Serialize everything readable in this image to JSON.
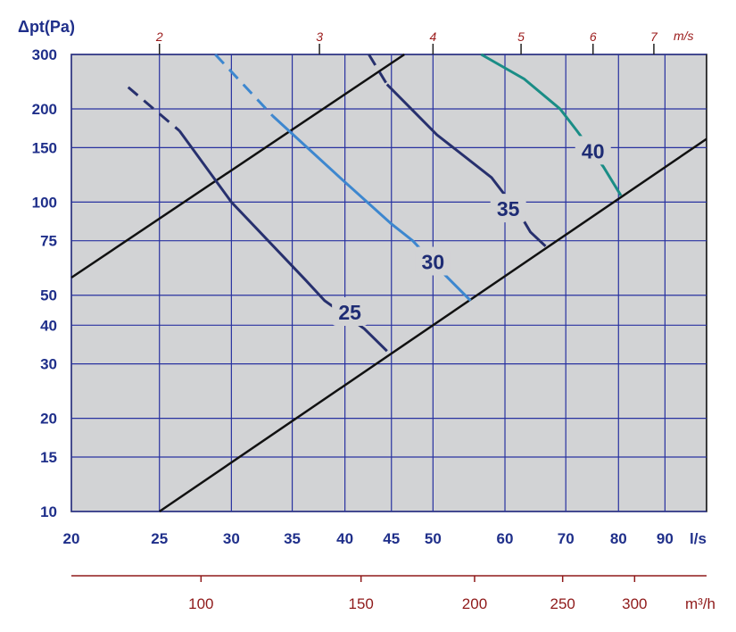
{
  "chart_data": {
    "type": "line",
    "title": "",
    "ylabel": "Δpt(Pa)",
    "xlabel": "l/s",
    "x_scale": "log",
    "y_scale": "log",
    "xlim": [
      20,
      100
    ],
    "ylim": [
      10,
      300
    ],
    "x_ticks": [
      20,
      25,
      30,
      35,
      40,
      45,
      50,
      60,
      70,
      80,
      90
    ],
    "y_ticks": [
      10,
      15,
      20,
      30,
      40,
      50,
      75,
      100,
      150,
      200,
      300
    ],
    "top_axis": {
      "label": "m/s",
      "ticks": [
        2,
        3,
        4,
        5,
        6,
        7
      ]
    },
    "bottom_axis": {
      "label": "m³/h",
      "ticks": [
        100,
        150,
        200,
        250,
        300
      ]
    },
    "grid": true,
    "series": [
      {
        "name": "25",
        "color": "#27306e",
        "dashed_upper": true,
        "points": [
          [
            23.1,
            235
          ],
          [
            26.3,
            170
          ],
          [
            30,
            100
          ],
          [
            36.2,
            56
          ],
          [
            38,
            48
          ],
          [
            42,
            39
          ],
          [
            44.5,
            33
          ]
        ]
      },
      {
        "name": "30",
        "color": "#3d87cf",
        "dashed_upper": true,
        "points": [
          [
            28.8,
            300
          ],
          [
            33.3,
            190
          ],
          [
            39.5,
            120
          ],
          [
            45,
            85
          ],
          [
            47.5,
            75
          ],
          [
            51,
            60
          ],
          [
            55,
            48
          ]
        ]
      },
      {
        "name": "35",
        "color": "#27306e",
        "dashed_upper": true,
        "points": [
          [
            42.5,
            300
          ],
          [
            44.5,
            240
          ],
          [
            50.5,
            165
          ],
          [
            58,
            120
          ],
          [
            62.5,
            90
          ],
          [
            64,
            80
          ],
          [
            66.5,
            72
          ]
        ]
      },
      {
        "name": "40",
        "color": "#1a8d86",
        "dashed_upper": false,
        "points": [
          [
            56.5,
            300
          ],
          [
            63,
            250
          ],
          [
            69,
            200
          ],
          [
            72,
            170
          ],
          [
            77,
            130
          ],
          [
            80.5,
            105
          ]
        ]
      }
    ],
    "system_lines": [
      {
        "color": "#111111",
        "points": [
          [
            20,
            57
          ],
          [
            46.5,
            300
          ]
        ]
      },
      {
        "color": "#111111",
        "points": [
          [
            25,
            10
          ],
          [
            100,
            160
          ]
        ]
      }
    ],
    "labels": [
      {
        "text": "25",
        "x": 40.5,
        "y": 44
      },
      {
        "text": "30",
        "x": 50,
        "y": 64
      },
      {
        "text": "35",
        "x": 60.5,
        "y": 95
      },
      {
        "text": "40",
        "x": 75,
        "y": 146
      }
    ]
  }
}
